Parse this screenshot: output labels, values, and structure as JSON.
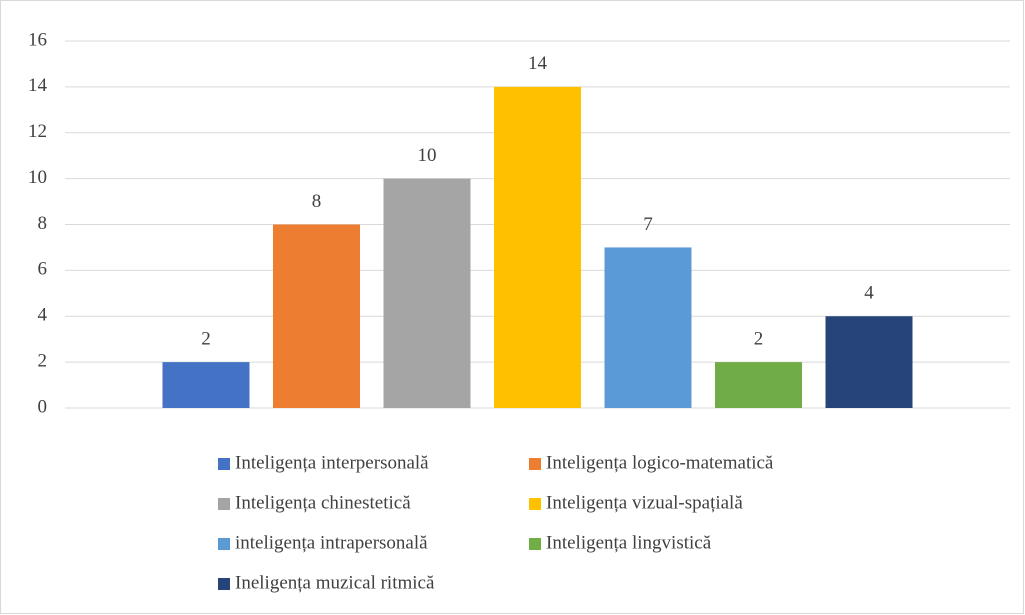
{
  "chart_data": {
    "type": "bar",
    "categories": [
      null
    ],
    "series": [
      {
        "name": "Inteligența interpersonală",
        "color": "#4472c4",
        "values": [
          2
        ]
      },
      {
        "name": "Inteligența logico-matematică",
        "color": "#ed7d31",
        "values": [
          8
        ]
      },
      {
        "name": "Inteligența chinestetică",
        "color": "#a5a5a5",
        "values": [
          10
        ]
      },
      {
        "name": "Inteligența vizual-spațială",
        "color": "#ffc000",
        "values": [
          14
        ]
      },
      {
        "name": "inteligența intrapersonală",
        "color": "#5b9bd5",
        "values": [
          7
        ]
      },
      {
        "name": "Inteligența lingvistică",
        "color": "#70ad47",
        "values": [
          2
        ]
      },
      {
        "name": "Ineligența muzical ritmică",
        "color": "#264478",
        "values": [
          4
        ]
      }
    ],
    "ylim": [
      0,
      16
    ],
    "yticks": [
      0,
      2,
      4,
      6,
      8,
      10,
      12,
      14,
      16
    ],
    "grid": true,
    "legend": "bottom"
  }
}
